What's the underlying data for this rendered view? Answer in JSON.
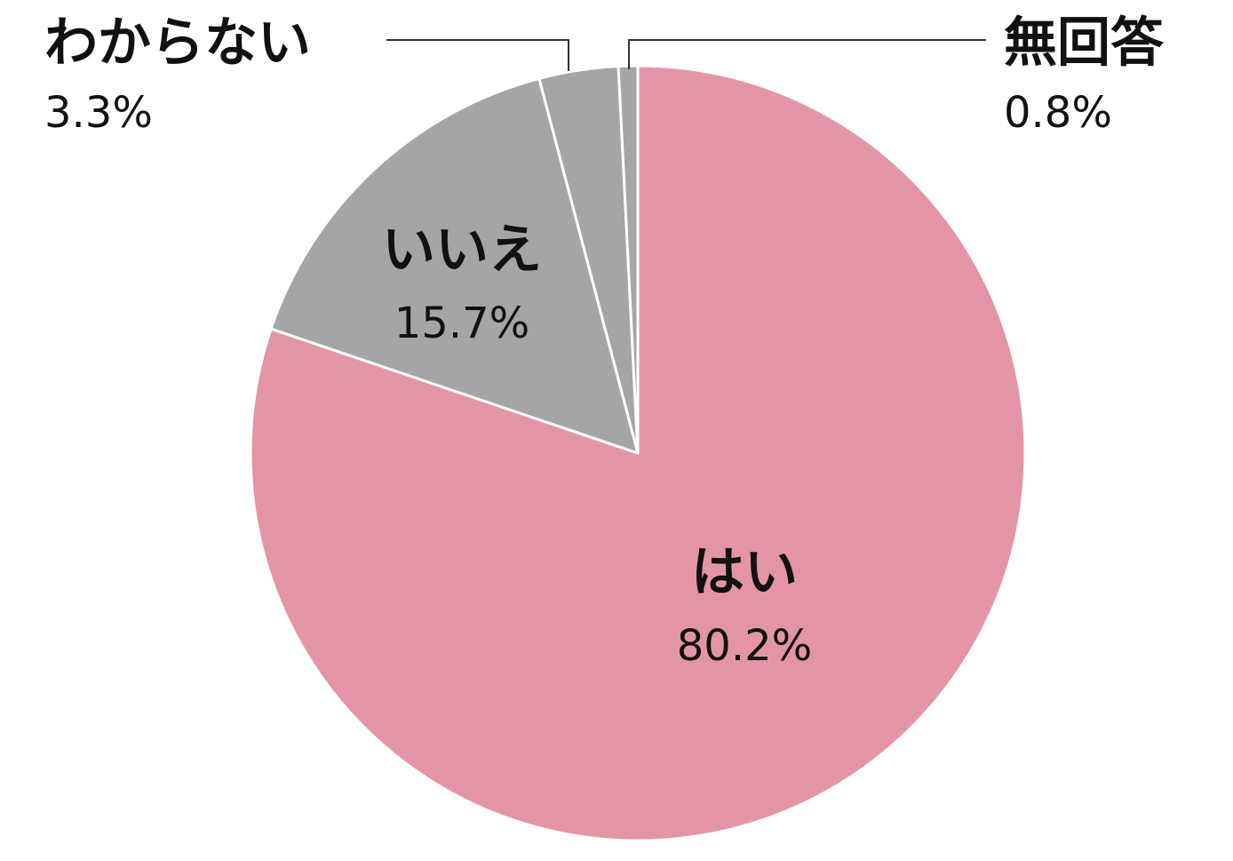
{
  "chart_data": {
    "type": "pie",
    "categories": [
      "はい",
      "いいえ",
      "わからない",
      "無回答"
    ],
    "values": [
      80.2,
      15.7,
      3.3,
      0.8
    ],
    "value_labels": [
      "80.2%",
      "15.7%",
      "3.3%",
      "0.8%"
    ],
    "colors": [
      "#e495a5",
      "#a5a5a5",
      "#a5a5a5",
      "#a5a5a5"
    ]
  }
}
